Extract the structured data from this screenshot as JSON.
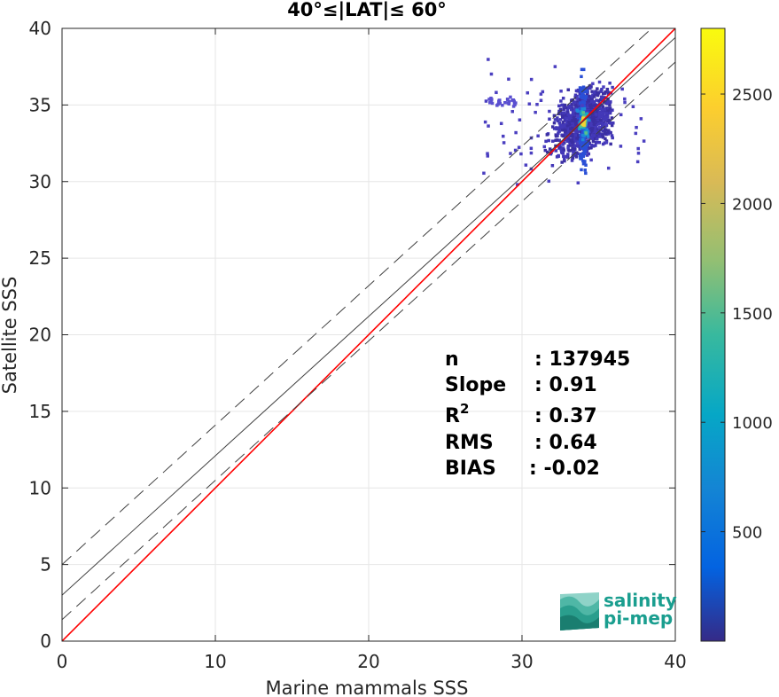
{
  "chart_data": {
    "type": "scatter",
    "title": "40°≤|LAT|≤ 60°",
    "xlabel": "Marine mammals SSS",
    "ylabel": "Satellite SSS",
    "xlim": [
      0,
      40
    ],
    "ylim": [
      0,
      40
    ],
    "xticks": [
      "0",
      "10",
      "20",
      "30",
      "40"
    ],
    "yticks": [
      "0",
      "5",
      "10",
      "15",
      "20",
      "25",
      "30",
      "35",
      "40"
    ],
    "grid": true,
    "density": {
      "center": [
        34.0,
        33.9
      ],
      "core_x_range": [
        31.5,
        36.0
      ],
      "core_y_range": [
        30.5,
        36.5
      ],
      "outliers_x_range": [
        27.5,
        38.0
      ],
      "outliers_y_range": [
        27.0,
        38.5
      ]
    },
    "lines": [
      {
        "name": "identity",
        "intercept": 0,
        "slope": 1,
        "color": "#ff0000",
        "style": "solid"
      },
      {
        "name": "fit",
        "intercept": 3.0,
        "slope": 0.91,
        "color": "#404040",
        "style": "solid"
      },
      {
        "name": "fit-upper",
        "intercept": 5.0,
        "slope": 0.91,
        "color": "#404040",
        "style": "dashed"
      },
      {
        "name": "fit-lower",
        "intercept": 1.4,
        "slope": 0.91,
        "color": "#404040",
        "style": "dashed"
      }
    ],
    "colorbar": {
      "colormap": "parula",
      "range": [
        0,
        2800
      ],
      "ticks": [
        "500",
        "1000",
        "1500",
        "2000",
        "2500"
      ],
      "tick_values": [
        500,
        1000,
        1500,
        2000,
        2500
      ]
    },
    "stats": [
      {
        "label": "n",
        "value": ": 137945"
      },
      {
        "label": "Slope",
        "value": ": 0.91"
      },
      {
        "label": "R",
        "sup": "2",
        "value": ": 0.37"
      },
      {
        "label": "RMS",
        "value": ": 0.64"
      },
      {
        "label": "BIAS",
        "value": ": -0.02"
      }
    ]
  },
  "logo": {
    "line1": "salinity",
    "line2": "pi-mep",
    "color": "#1a9e8f"
  }
}
